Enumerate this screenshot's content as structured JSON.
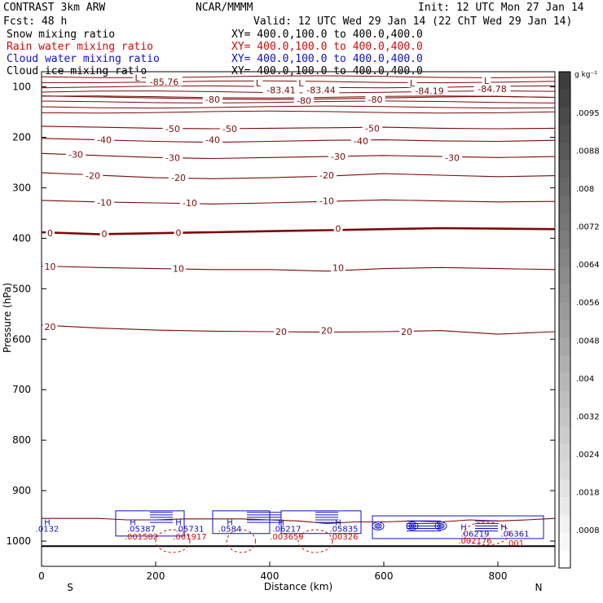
{
  "header": {
    "model": "CONTRAST   3km ARW",
    "org": "NCAR/MMMM",
    "init": "Init: 12 UTC Mon 27 Jan 14",
    "fcst": "Fcst:    48 h",
    "valid": "Valid: 12 UTC Wed 29 Jan 14 (22 ChT Wed 29 Jan 14)"
  },
  "fields": [
    {
      "name": "Snow mixing ratio",
      "xy": "XY= 400.0,100.0 to 400.0,400.0",
      "color": "#000000"
    },
    {
      "name": "Rain water mixing ratio",
      "xy": "XY= 400.0,100.0 to 400.0,400.0",
      "color": "#d10a0a"
    },
    {
      "name": "Cloud water mixing ratio",
      "xy": "XY= 400.0,100.0 to 400.0,400.0",
      "color": "#1010c8"
    },
    {
      "name": "Cloud ice mixing ratio",
      "xy": "XY= 400.0,100.0 to 400.0,400.0",
      "color": "#000000"
    }
  ],
  "chart_data": {
    "type": "contour",
    "xlabel": "Distance (km)",
    "ylabel": "Pressure (hPa)",
    "xlim": [
      0,
      900
    ],
    "x_ticks": [
      0,
      200,
      400,
      600,
      800
    ],
    "ylim": [
      1050,
      70
    ],
    "y_ticks": [
      100,
      200,
      300,
      400,
      500,
      600,
      700,
      800,
      900,
      1000
    ],
    "x_ends": {
      "left": "S",
      "right": "N"
    },
    "contour_color": "#7a0a0a",
    "isotherms": [
      {
        "level": -80,
        "y": [
          118,
          120,
          122,
          124,
          125,
          124,
          122,
          120,
          119,
          121
        ]
      },
      {
        "level": -50,
        "y": [
          178,
          180,
          182,
          183,
          182,
          181,
          180,
          182,
          183,
          182
        ]
      },
      {
        "level": -40,
        "y": [
          202,
          205,
          208,
          210,
          208,
          206,
          205,
          207,
          208,
          206
        ]
      },
      {
        "level": -30,
        "y": [
          232,
          236,
          240,
          242,
          240,
          238,
          236,
          238,
          240,
          238
        ]
      },
      {
        "level": -20,
        "y": [
          270,
          275,
          280,
          282,
          280,
          277,
          272,
          275,
          278,
          276
        ]
      },
      {
        "level": -10,
        "y": [
          325,
          328,
          330,
          332,
          330,
          327,
          324,
          326,
          328,
          327
        ]
      },
      {
        "level": 0,
        "y": [
          388,
          392,
          390,
          388,
          386,
          384,
          382,
          380,
          381,
          382
        ],
        "bold": true
      },
      {
        "level": 10,
        "y": [
          455,
          458,
          460,
          462,
          462,
          465,
          460,
          458,
          460,
          462
        ]
      },
      {
        "level": 20,
        "y": [
          572,
          578,
          582,
          584,
          585,
          586,
          585,
          583,
          590,
          585
        ]
      }
    ],
    "isotherm_labels": [
      {
        "text": "-80",
        "x": 300,
        "p": 125
      },
      {
        "text": "-80",
        "x": 460,
        "p": 127
      },
      {
        "text": "-80",
        "x": 585,
        "p": 125
      },
      {
        "text": "-80",
        "x": 470,
        "p": 103
      },
      {
        "text": "-50",
        "x": 230,
        "p": 183
      },
      {
        "text": "-50",
        "x": 330,
        "p": 183
      },
      {
        "text": "-50",
        "x": 580,
        "p": 182
      },
      {
        "text": "-40",
        "x": 110,
        "p": 205
      },
      {
        "text": "-40",
        "x": 300,
        "p": 205
      },
      {
        "text": "-40",
        "x": 560,
        "p": 207
      },
      {
        "text": "-30",
        "x": 60,
        "p": 234
      },
      {
        "text": "-30",
        "x": 230,
        "p": 240
      },
      {
        "text": "-30",
        "x": 520,
        "p": 238
      },
      {
        "text": "-30",
        "x": 720,
        "p": 240
      },
      {
        "text": "-20",
        "x": 90,
        "p": 276
      },
      {
        "text": "-20",
        "x": 240,
        "p": 280
      },
      {
        "text": "-20",
        "x": 500,
        "p": 275
      },
      {
        "text": "-10",
        "x": 110,
        "p": 329
      },
      {
        "text": "-10",
        "x": 260,
        "p": 330
      },
      {
        "text": "-10",
        "x": 500,
        "p": 326
      },
      {
        "text": "0",
        "x": 15,
        "p": 390
      },
      {
        "text": "0",
        "x": 110,
        "p": 391
      },
      {
        "text": "0",
        "x": 240,
        "p": 389
      },
      {
        "text": "0",
        "x": 520,
        "p": 381
      },
      {
        "text": "10",
        "x": 15,
        "p": 456
      },
      {
        "text": "10",
        "x": 240,
        "p": 460
      },
      {
        "text": "10",
        "x": 520,
        "p": 458
      },
      {
        "text": "20",
        "x": 15,
        "p": 575
      },
      {
        "text": "20",
        "x": 420,
        "p": 585
      },
      {
        "text": "20",
        "x": 500,
        "p": 583
      },
      {
        "text": "20",
        "x": 640,
        "p": 585
      }
    ],
    "extrema_labels": [
      {
        "text": "-85.76",
        "x": 215,
        "p": 90
      },
      {
        "text": "-83.41",
        "x": 420,
        "p": 106
      },
      {
        "text": "-83.44",
        "x": 490,
        "p": 106
      },
      {
        "text": "-84.19",
        "x": 680,
        "p": 108
      },
      {
        "text": "-84.78",
        "x": 790,
        "p": 104
      }
    ],
    "lows": [
      {
        "text": "L",
        "x": 168,
        "p": 82
      },
      {
        "text": "L",
        "x": 380,
        "p": 93
      },
      {
        "text": "L",
        "x": 455,
        "p": 93
      },
      {
        "text": "L",
        "x": 650,
        "p": 93
      },
      {
        "text": "L",
        "x": 780,
        "p": 88
      }
    ],
    "colorbar": {
      "unit": "g kg⁻¹",
      "labels": [
        ".0095",
        ".0088",
        ".008",
        ".0072",
        ".0064",
        ".0056",
        ".0048",
        ".004",
        ".0032",
        ".0024",
        ".0018",
        ".0008"
      ]
    },
    "cloud_annotations": [
      {
        "text": "H",
        "x": 10,
        "p": 962,
        "color": "#1010c8"
      },
      {
        "text": ".0132",
        "x": 10,
        "p": 975,
        "color": "#1010c8"
      },
      {
        "text": "H",
        "x": 160,
        "p": 962,
        "color": "#1010c8"
      },
      {
        "text": ".05387",
        "x": 175,
        "p": 975,
        "color": "#1010c8"
      },
      {
        "text": ".001582",
        "x": 175,
        "p": 990,
        "color": "#d10a0a"
      },
      {
        "text": "H",
        "x": 240,
        "p": 962,
        "color": "#1010c8"
      },
      {
        "text": ".05731",
        "x": 260,
        "p": 975,
        "color": "#1010c8"
      },
      {
        "text": ".001917",
        "x": 260,
        "p": 990,
        "color": "#d10a0a"
      },
      {
        "text": "H",
        "x": 330,
        "p": 962,
        "color": "#1010c8"
      },
      {
        "text": ".0584",
        "x": 330,
        "p": 975,
        "color": "#1010c8"
      },
      {
        "text": "H",
        "x": 420,
        "p": 962,
        "color": "#1010c8"
      },
      {
        "text": ".06217",
        "x": 430,
        "p": 975,
        "color": "#1010c8"
      },
      {
        "text": ".003659",
        "x": 430,
        "p": 990,
        "color": "#d10a0a"
      },
      {
        "text": "H",
        "x": 520,
        "p": 962,
        "color": "#1010c8"
      },
      {
        "text": ".05835",
        "x": 530,
        "p": 975,
        "color": "#1010c8"
      },
      {
        "text": ".00326",
        "x": 530,
        "p": 990,
        "color": "#d10a0a"
      },
      {
        "text": "H",
        "x": 740,
        "p": 972,
        "color": "#1010c8"
      },
      {
        "text": ".06219",
        "x": 760,
        "p": 985,
        "color": "#1010c8"
      },
      {
        "text": ".002176",
        "x": 760,
        "p": 998,
        "color": "#d10a0a"
      },
      {
        "text": "H",
        "x": 810,
        "p": 972,
        "color": "#1010c8"
      },
      {
        "text": ".06361",
        "x": 830,
        "p": 985,
        "color": "#1010c8"
      },
      {
        "text": ".001",
        "x": 830,
        "p": 1003,
        "color": "#d10a0a"
      }
    ],
    "surface_line": [
      955,
      955,
      955,
      958,
      958,
      956,
      956,
      956,
      958,
      960,
      965,
      962,
      962,
      960,
      962,
      958,
      960,
      958,
      955
    ]
  }
}
